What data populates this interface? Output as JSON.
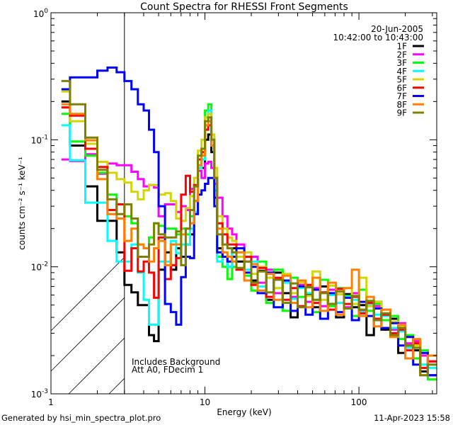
{
  "chart_data": {
    "type": "line",
    "title": "Count Spectra for RHESSI Front Segments",
    "xlabel": "Energy (keV)",
    "ylabel": "counts cm⁻² s⁻¹ keV⁻¹",
    "xscale": "log",
    "yscale": "log",
    "xlim": [
      1,
      320
    ],
    "ylim": [
      0.001,
      1
    ],
    "xticks": [
      {
        "value": 1,
        "label": "1"
      },
      {
        "value": 10,
        "label": "10"
      },
      {
        "value": 100,
        "label": "100"
      }
    ],
    "yticks": [
      {
        "value": 1,
        "base": "10",
        "exp": "0"
      },
      {
        "value": 0.1,
        "base": "10",
        "exp": "-1"
      },
      {
        "value": 0.01,
        "base": "10",
        "exp": "-2"
      },
      {
        "value": 0.001,
        "base": "10",
        "exp": "-3"
      }
    ],
    "legend_position": "top-right",
    "legend_header": [
      "20-Jun-2005",
      "10:42:00 to 10:43:00"
    ],
    "hatched_region_keV": [
      1,
      3
    ],
    "annotations": [
      "Includes Background",
      "Att A0, FDecim 1"
    ],
    "energy_edges": [
      1.17,
      1.33,
      1.67,
      2.0,
      2.33,
      2.67,
      3.0,
      3.33,
      3.67,
      4.0,
      4.33,
      4.67,
      5.0,
      5.5,
      6,
      6.5,
      7,
      7.5,
      8,
      8.5,
      9,
      9.5,
      10,
      10.5,
      11,
      11.5,
      12,
      13,
      14,
      15,
      16,
      18,
      20,
      22,
      25,
      28,
      32,
      36,
      40,
      45,
      50,
      56,
      63,
      71,
      80,
      90,
      100,
      112,
      125,
      140,
      160,
      180,
      200,
      225,
      250,
      280,
      320
    ],
    "series": [
      {
        "name": "1F",
        "color": "#000000",
        "values": [
          0.2,
          0.09,
          0.043,
          0.023,
          0.023,
          0.013,
          0.0072,
          0.0063,
          0.005,
          0.005,
          0.0029,
          0.0026,
          0.0095,
          0.013,
          0.0095,
          0.014,
          0.012,
          0.015,
          0.018,
          0.033,
          0.06,
          0.06,
          0.1,
          0.11,
          0.08,
          0.035,
          0.014,
          0.012,
          0.01,
          0.014,
          0.011,
          0.012,
          0.0078,
          0.0093,
          0.0055,
          0.009,
          0.0062,
          0.004,
          0.0069,
          0.006,
          0.0048,
          0.007,
          0.0051,
          0.004,
          0.0061,
          0.0048,
          0.005,
          0.0029,
          0.0053,
          0.0032,
          0.0039,
          0.0021,
          0.0024,
          0.0022,
          0.0015,
          0.0014
        ]
      },
      {
        "name": "2F",
        "color": "#ff00ff",
        "values": [
          0.07,
          0.068,
          0.077,
          0.054,
          0.065,
          0.063,
          0.063,
          0.056,
          0.049,
          0.043,
          0.044,
          0.042,
          0.025,
          0.031,
          0.031,
          0.027,
          0.03,
          0.028,
          0.041,
          0.043,
          0.057,
          0.05,
          0.065,
          0.067,
          0.06,
          0.045,
          0.035,
          0.025,
          0.02,
          0.018,
          0.015,
          0.011,
          0.012,
          0.0075,
          0.0095,
          0.0062,
          0.0078,
          0.0058,
          0.0072,
          0.0053,
          0.0068,
          0.0049,
          0.0066,
          0.0061,
          0.0048,
          0.0062,
          0.0045,
          0.0052,
          0.0049,
          0.0043,
          0.0032,
          0.0036,
          0.0025,
          0.0026,
          0.002,
          0.0018
        ]
      },
      {
        "name": "3F",
        "color": "#00ff00",
        "values": [
          0.16,
          0.097,
          0.075,
          0.055,
          0.037,
          0.024,
          0.025,
          0.022,
          0.015,
          0.014,
          0.017,
          0.022,
          0.021,
          0.02,
          0.02,
          0.018,
          0.02,
          0.018,
          0.025,
          0.033,
          0.06,
          0.07,
          0.17,
          0.19,
          0.1,
          0.04,
          0.012,
          0.01,
          0.008,
          0.01,
          0.013,
          0.0085,
          0.0065,
          0.011,
          0.0052,
          0.0095,
          0.0045,
          0.0082,
          0.0058,
          0.0071,
          0.0044,
          0.0079,
          0.0049,
          0.0068,
          0.0059,
          0.0041,
          0.0066,
          0.0045,
          0.0051,
          0.0038,
          0.0041,
          0.0027,
          0.0029,
          0.0019,
          0.0022,
          0.0013
        ]
      },
      {
        "name": "4F",
        "color": "#00ffff",
        "values": [
          0.13,
          0.069,
          0.032,
          0.032,
          0.016,
          0.011,
          0.011,
          0.015,
          0.009,
          0.0055,
          0.0035,
          0.0035,
          0.011,
          0.011,
          0.016,
          0.0128,
          0.015,
          0.015,
          0.02,
          0.027,
          0.06,
          0.07,
          0.15,
          0.17,
          0.1,
          0.04,
          0.011,
          0.012,
          0.01,
          0.013,
          0.014,
          0.0095,
          0.011,
          0.007,
          0.009,
          0.0068,
          0.0075,
          0.0056,
          0.0068,
          0.0062,
          0.0055,
          0.0063,
          0.006,
          0.0052,
          0.0058,
          0.0055,
          0.0044,
          0.005,
          0.0042,
          0.0041,
          0.0033,
          0.0031,
          0.0023,
          0.0024,
          0.0017,
          0.0016
        ]
      },
      {
        "name": "5F",
        "color": "#d4d400",
        "values": [
          0.24,
          0.14,
          0.093,
          0.067,
          0.055,
          0.049,
          0.046,
          0.039,
          0.034,
          0.04,
          0.044,
          0.044,
          0.037,
          0.038,
          0.033,
          0.024,
          0.023,
          0.029,
          0.036,
          0.05,
          0.082,
          0.1,
          0.15,
          0.16,
          0.11,
          0.06,
          0.025,
          0.02,
          0.017,
          0.016,
          0.012,
          0.013,
          0.0088,
          0.01,
          0.0082,
          0.0068,
          0.0088,
          0.0062,
          0.0075,
          0.0059,
          0.0092,
          0.0055,
          0.0071,
          0.0061,
          0.0068,
          0.0051,
          0.0082,
          0.0049,
          0.0053,
          0.0046,
          0.0037,
          0.0034,
          0.0028,
          0.0024,
          0.0021,
          0.0017
        ]
      },
      {
        "name": "6F",
        "color": "#ff0000",
        "values": [
          0.18,
          0.155,
          0.085,
          0.061,
          0.028,
          0.031,
          0.0093,
          0.014,
          0.0092,
          0.011,
          0.009,
          0.0057,
          0.017,
          0.008,
          0.0103,
          0.0117,
          0.037,
          0.052,
          0.039,
          0.044,
          0.07,
          0.08,
          0.12,
          0.13,
          0.09,
          0.05,
          0.022,
          0.018,
          0.015,
          0.015,
          0.0095,
          0.012,
          0.0072,
          0.0098,
          0.0058,
          0.0082,
          0.0055,
          0.0068,
          0.0049,
          0.0072,
          0.0052,
          0.0063,
          0.0046,
          0.0067,
          0.0051,
          0.0058,
          0.0043,
          0.0052,
          0.0039,
          0.0042,
          0.003,
          0.0032,
          0.0022,
          0.0025,
          0.0016,
          0.0018
        ]
      },
      {
        "name": "7F",
        "color": "#0000ff",
        "values": [
          0.25,
          0.31,
          0.31,
          0.35,
          0.37,
          0.34,
          0.29,
          0.25,
          0.19,
          0.17,
          0.12,
          0.08,
          0.03,
          0.0051,
          0.0044,
          0.0035,
          0.0083,
          0.012,
          0.0117,
          0.026,
          0.037,
          0.04,
          0.045,
          0.05,
          0.05,
          0.03,
          0.013,
          0.012,
          0.011,
          0.012,
          0.014,
          0.009,
          0.01,
          0.0062,
          0.009,
          0.0048,
          0.0078,
          0.0045,
          0.007,
          0.0042,
          0.0066,
          0.0039,
          0.0062,
          0.0044,
          0.0057,
          0.0038,
          0.0053,
          0.0041,
          0.0047,
          0.0033,
          0.0036,
          0.0024,
          0.0028,
          0.0017,
          0.0021,
          0.0014
        ]
      },
      {
        "name": "8F",
        "color": "#ff8000",
        "values": [
          0.19,
          0.16,
          0.099,
          0.049,
          0.026,
          0.024,
          0.016,
          0.02,
          0.015,
          0.014,
          0.011,
          0.014,
          0.016,
          0.0103,
          0.015,
          0.015,
          0.018,
          0.02,
          0.022,
          0.033,
          0.063,
          0.075,
          0.13,
          0.14,
          0.09,
          0.05,
          0.02,
          0.013,
          0.012,
          0.011,
          0.013,
          0.0078,
          0.0105,
          0.0065,
          0.0088,
          0.0055,
          0.0085,
          0.0052,
          0.0078,
          0.0048,
          0.0082,
          0.0045,
          0.0075,
          0.0042,
          0.0068,
          0.0095,
          0.0041,
          0.0058,
          0.0034,
          0.0046,
          0.0028,
          0.0035,
          0.0019,
          0.0027,
          0.0014,
          0.002
        ]
      },
      {
        "name": "9F",
        "color": "#808000",
        "values": [
          0.29,
          0.19,
          0.104,
          0.058,
          0.034,
          0.026,
          0.031,
          0.024,
          0.012,
          0.012,
          0.015,
          0.022,
          0.018,
          0.017,
          0.017,
          0.019,
          0.0103,
          0.02,
          0.028,
          0.043,
          0.075,
          0.085,
          0.14,
          0.15,
          0.1,
          0.05,
          0.018,
          0.015,
          0.014,
          0.013,
          0.0098,
          0.011,
          0.0075,
          0.0092,
          0.0063,
          0.0079,
          0.0052,
          0.0074,
          0.0048,
          0.0069,
          0.0055,
          0.0062,
          0.0051,
          0.0064,
          0.0047,
          0.0059,
          0.0046,
          0.0054,
          0.0038,
          0.0043,
          0.0029,
          0.0033,
          0.0024,
          0.0023,
          0.0014,
          0.0017
        ]
      }
    ]
  },
  "footer": {
    "generated_by": "Generated by hsi_min_spectra_plot.pro",
    "timestamp": "11-Apr-2023 15:58"
  }
}
